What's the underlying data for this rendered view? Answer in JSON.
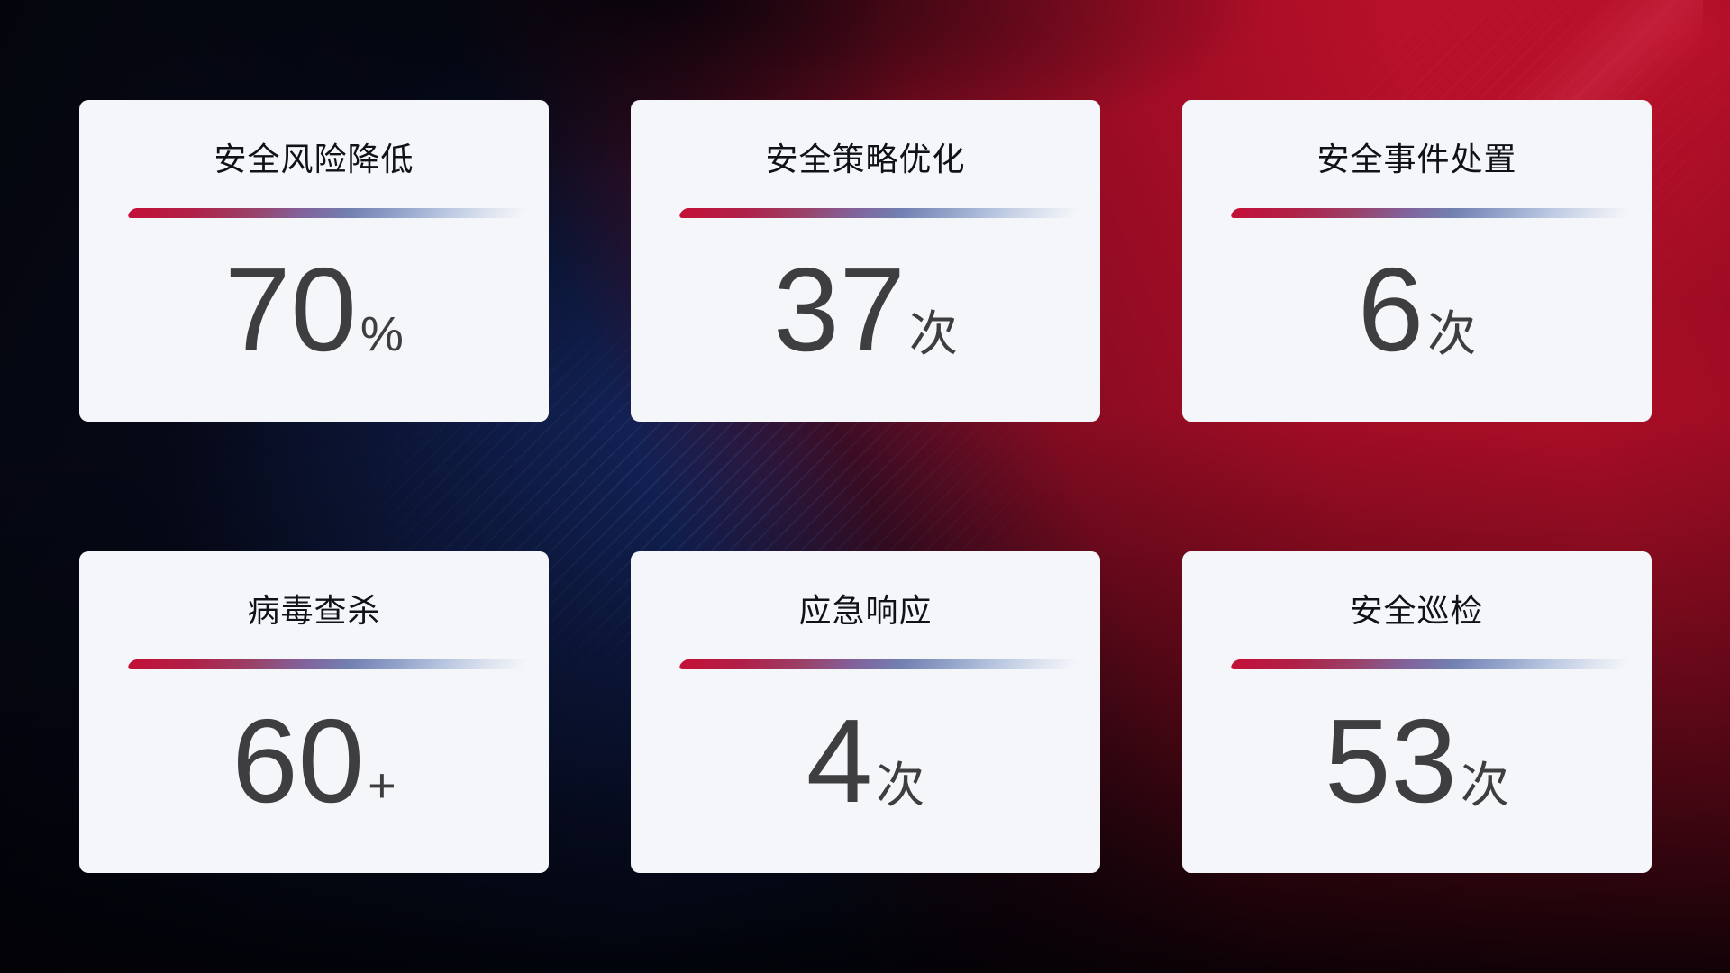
{
  "cards": [
    {
      "id": "risk-reduction",
      "title": "安全风险降低",
      "value": "70",
      "unit": "%"
    },
    {
      "id": "policy-optimization",
      "title": "安全策略优化",
      "value": "37",
      "unit": "次"
    },
    {
      "id": "incident-handling",
      "title": "安全事件处置",
      "value": "6",
      "unit": "次"
    },
    {
      "id": "virus-scan",
      "title": "病毒查杀",
      "value": "60",
      "unit": "+"
    },
    {
      "id": "emergency-response",
      "title": "应急响应",
      "value": "4",
      "unit": "次"
    },
    {
      "id": "security-inspection",
      "title": "安全巡检",
      "value": "53",
      "unit": "次"
    }
  ],
  "colors": {
    "card_background": "#f5f6fa",
    "title_text": "#101216",
    "value_text": "#3e3e40",
    "divider_gradient_start": "#c31038",
    "divider_gradient_mid": "#7280b2",
    "divider_gradient_end": "#dde3ef",
    "background_dark": "#05060e",
    "background_navy": "#0e1d4e",
    "background_crimson": "#a30d25"
  }
}
